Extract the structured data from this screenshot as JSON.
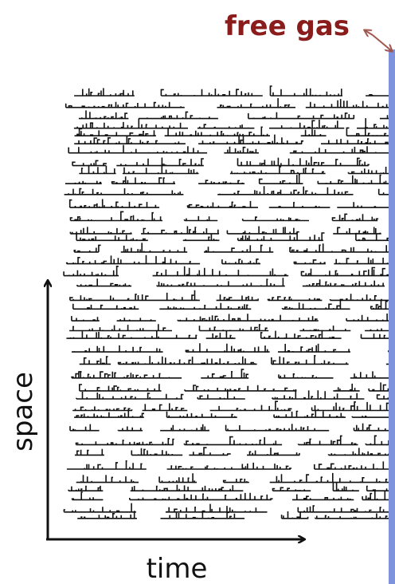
{
  "labels": {
    "title": "free gas",
    "y_axis": "space",
    "x_axis": "time"
  }
}
